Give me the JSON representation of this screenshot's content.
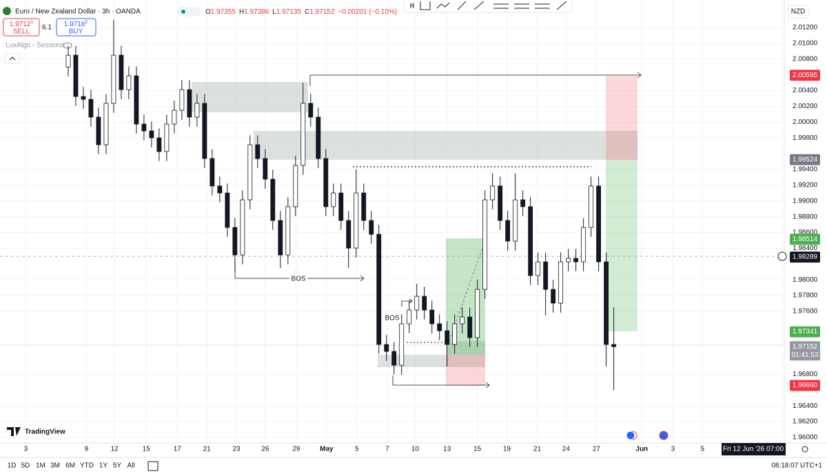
{
  "header": {
    "symbol": "Euro / New Zealand Dollar · 3h · OANDA",
    "ohlc": [
      {
        "key": "O",
        "value": 1.97355
      },
      {
        "key": "H",
        "value": 1.97386
      },
      {
        "key": "L",
        "value": 1.97135
      },
      {
        "key": "C",
        "value": 1.97152
      }
    ],
    "change": "−0.00201 (−0.10%)"
  },
  "trade": {
    "sell_price": "1.9712",
    "sell_sup": "1",
    "sell": "SELL",
    "spread": "6.1",
    "buy_price": "1.9718",
    "buy_sup": "2",
    "buy": "BUY"
  },
  "indicator": "LuxAlgo - Sessions",
  "logo": "TradingView",
  "currency": "NZD",
  "crosshair_date": "Fri 12 Jun '26  07:00",
  "clock": "08:18:07 UTC+1",
  "ranges": [
    "1D",
    "5D",
    "1M",
    "3M",
    "6M",
    "YTD",
    "1Y",
    "5Y",
    "All"
  ],
  "chart_data": {
    "type": "candlestick",
    "annotations": [
      "BOS",
      "BOS"
    ],
    "x": [
      9,
      10,
      11,
      12,
      13,
      14,
      15,
      16,
      17,
      18,
      19,
      20,
      21,
      22,
      23,
      24,
      25,
      26,
      27,
      28,
      29,
      30,
      31,
      32,
      33,
      34,
      35,
      36,
      37,
      38,
      39,
      40,
      41,
      42,
      43,
      44,
      45,
      46,
      47,
      48,
      49,
      50,
      51,
      52,
      53,
      54,
      55,
      56,
      57,
      58,
      59,
      60,
      61,
      62,
      63,
      64,
      65,
      66,
      67,
      68,
      69,
      70,
      71,
      72,
      73,
      74,
      75,
      76,
      77,
      78,
      79,
      80,
      81
    ],
    "open": [
      2.007,
      2.0085,
      2.00326,
      2.0029,
      2.00064,
      1.99714,
      2.00239,
      2.0085,
      2.00413,
      2.00588,
      1.99976,
      1.99889,
      1.99802,
      1.99627,
      1.99976,
      2.00151,
      2.00413,
      2.00064,
      2.00239,
      1.99539,
      1.9919,
      1.99102,
      1.98665,
      1.98316,
      1.99015,
      1.99714,
      1.99539,
      1.99277,
      1.98753,
      1.98316,
      1.98928,
      1.99452,
      2.00239,
      2.00064,
      1.99539,
      1.98928,
      1.99102,
      1.98753,
      1.98403,
      1.99102,
      1.98753,
      1.98578,
      1.9718,
      1.97092,
      1.96917,
      1.97442,
      1.97617,
      1.97791,
      1.97617,
      1.97442,
      1.97354,
      1.9718,
      1.97442,
      1.97529,
      1.97267,
      1.97879,
      1.99015,
      1.9919,
      1.98753,
      1.98491,
      1.99015,
      1.98928,
      1.98054,
      1.98228,
      1.97879,
      1.97704,
      1.98228,
      1.98272,
      1.98228,
      1.98665,
      1.9919,
      1.98228,
      1.9718
    ],
    "high": [
      2.0097,
      2.0097,
      2.00446,
      2.0041,
      2.00184,
      2.00359,
      2.013,
      2.0097,
      2.00708,
      2.00708,
      2.00096,
      2.00009,
      1.99922,
      2.00096,
      2.00271,
      2.00533,
      2.00533,
      2.00359,
      2.00359,
      1.99659,
      1.9931,
      1.99222,
      1.98785,
      1.99135,
      1.99834,
      1.99834,
      1.99659,
      1.99397,
      1.98873,
      1.99048,
      1.99572,
      2.005,
      2.00359,
      2.00184,
      1.99659,
      1.99222,
      1.99222,
      1.98873,
      1.994,
      1.99222,
      1.98873,
      1.98698,
      1.973,
      1.97212,
      1.97562,
      1.97737,
      1.9795,
      1.97911,
      1.97737,
      1.97562,
      1.97474,
      1.97562,
      1.97649,
      1.97649,
      1.97999,
      1.99135,
      1.9935,
      1.9931,
      1.98873,
      1.9935,
      1.99135,
      1.99048,
      1.98348,
      1.98348,
      1.97999,
      1.98348,
      1.98392,
      1.98392,
      1.98785,
      1.9931,
      1.9931,
      1.98348,
      1.9765
    ],
    "low": [
      2.0058,
      2.00206,
      2.0017,
      1.99944,
      1.99594,
      1.99594,
      2.00119,
      2.00293,
      2.00293,
      1.99856,
      1.99769,
      1.99682,
      1.99507,
      1.99507,
      1.99856,
      2.00031,
      1.99944,
      1.99944,
      1.99419,
      1.9907,
      1.98982,
      1.98545,
      1.981,
      1.98196,
      1.98895,
      1.99419,
      1.99157,
      1.98633,
      1.9815,
      1.98196,
      1.98808,
      1.99332,
      1.99944,
      1.99419,
      1.98808,
      1.98808,
      1.98633,
      1.9815,
      1.98283,
      1.98633,
      1.98458,
      1.9706,
      1.96972,
      1.968,
      1.96797,
      1.97322,
      1.97497,
      1.97497,
      1.97322,
      1.97234,
      1.969,
      1.9706,
      1.97322,
      1.97147,
      1.97147,
      1.97759,
      1.98895,
      1.98633,
      1.98371,
      1.98371,
      1.98808,
      1.97934,
      1.97934,
      1.9755,
      1.97584,
      1.97584,
      1.98108,
      1.98108,
      1.98108,
      1.98545,
      1.98108,
      1.969,
      1.966
    ],
    "close": [
      2.0085,
      2.00326,
      2.0029,
      2.00064,
      1.99714,
      2.00239,
      2.0085,
      2.00413,
      2.00588,
      1.99976,
      1.99889,
      1.99802,
      1.99627,
      1.99976,
      2.00151,
      2.00413,
      2.00064,
      2.00239,
      1.99539,
      1.9919,
      1.99102,
      1.98665,
      1.98316,
      1.99015,
      1.99714,
      1.99539,
      1.99277,
      1.98753,
      1.98316,
      1.98928,
      1.99452,
      2.00239,
      2.00064,
      1.99539,
      1.98928,
      1.99102,
      1.98753,
      1.98403,
      1.99102,
      1.98753,
      1.98578,
      1.9718,
      1.97092,
      1.96917,
      1.97442,
      1.97617,
      1.97791,
      1.97617,
      1.97442,
      1.97354,
      1.9718,
      1.97442,
      1.97529,
      1.97267,
      1.97879,
      1.99015,
      1.9919,
      1.98753,
      1.98491,
      1.99015,
      1.98928,
      1.98054,
      1.98228,
      1.97879,
      1.97704,
      1.98228,
      1.98272,
      1.98228,
      1.98665,
      1.9919,
      1.98228,
      1.9718,
      1.97152
    ],
    "up_color": "#ffffff",
    "down_color": "#131722",
    "ylim": [
      1.9593,
      2.0155
    ],
    "yticks": [
      {
        "value": 2.012,
        "label": "2.01200"
      },
      {
        "value": 2.01,
        "label": "2.01000"
      },
      {
        "value": 2.008,
        "label": "2.00800"
      },
      {
        "value": 2.004,
        "label": "2.00400"
      },
      {
        "value": 2.002,
        "label": "2.00200"
      },
      {
        "value": 2.0,
        "label": "2.00000"
      },
      {
        "value": 1.998,
        "label": "1.99800"
      },
      {
        "value": 1.994,
        "label": "1.99400"
      },
      {
        "value": 1.992,
        "label": "1.99200"
      },
      {
        "value": 1.99,
        "label": "1.99000"
      },
      {
        "value": 1.988,
        "label": "1.98800"
      },
      {
        "value": 1.986,
        "label": "1.98600"
      },
      {
        "value": 1.984,
        "label": "1.98400"
      },
      {
        "value": 1.98,
        "label": "1.98000"
      },
      {
        "value": 1.978,
        "label": "1.97800"
      },
      {
        "value": 1.976,
        "label": "1.97600"
      },
      {
        "value": 1.968,
        "label": "1.96800"
      },
      {
        "value": 1.964,
        "label": "1.96400"
      },
      {
        "value": 1.962,
        "label": "1.96200"
      },
      {
        "value": 1.96,
        "label": "1.96000"
      }
    ],
    "xlim": [
      0,
      103.5
    ],
    "xticks": [
      {
        "value": 3.4,
        "label": "3"
      },
      {
        "value": 11.4,
        "label": "9"
      },
      {
        "value": 15.1,
        "label": "12"
      },
      {
        "value": 19.3,
        "label": "15"
      },
      {
        "value": 23.4,
        "label": "17"
      },
      {
        "value": 27.3,
        "label": "21"
      },
      {
        "value": 31.2,
        "label": "23"
      },
      {
        "value": 35,
        "label": "26"
      },
      {
        "value": 39.1,
        "label": "29"
      },
      {
        "value": 43.1,
        "label": "May"
      },
      {
        "value": 47.1,
        "label": "5"
      },
      {
        "value": 51.1,
        "label": "7"
      },
      {
        "value": 54.8,
        "label": "10"
      },
      {
        "value": 59,
        "label": "13"
      },
      {
        "value": 63,
        "label": "15"
      },
      {
        "value": 66.9,
        "label": "19"
      },
      {
        "value": 70.9,
        "label": "21"
      },
      {
        "value": 74.7,
        "label": "24"
      },
      {
        "value": 78.7,
        "label": "27"
      },
      {
        "value": 84.7,
        "label": "Jun"
      },
      {
        "value": 88.8,
        "label": "3"
      },
      {
        "value": 92.7,
        "label": "5"
      }
    ],
    "grid": true,
    "price_labels": [
      {
        "value": 2.00595,
        "color": "#f23645"
      },
      {
        "value": 1.99524,
        "color": "#787b86"
      },
      {
        "value": 1.98514,
        "color": "#4caf50"
      },
      {
        "value": 1.98289,
        "color": "#131722"
      },
      {
        "value": 1.97341,
        "color": "#4caf50"
      },
      {
        "value": 1.97152,
        "color": "#9598a1"
      },
      {
        "value": 1.9666,
        "label": "1.96660",
        "color": "#f23645"
      }
    ],
    "countdown": "01:41:53"
  }
}
